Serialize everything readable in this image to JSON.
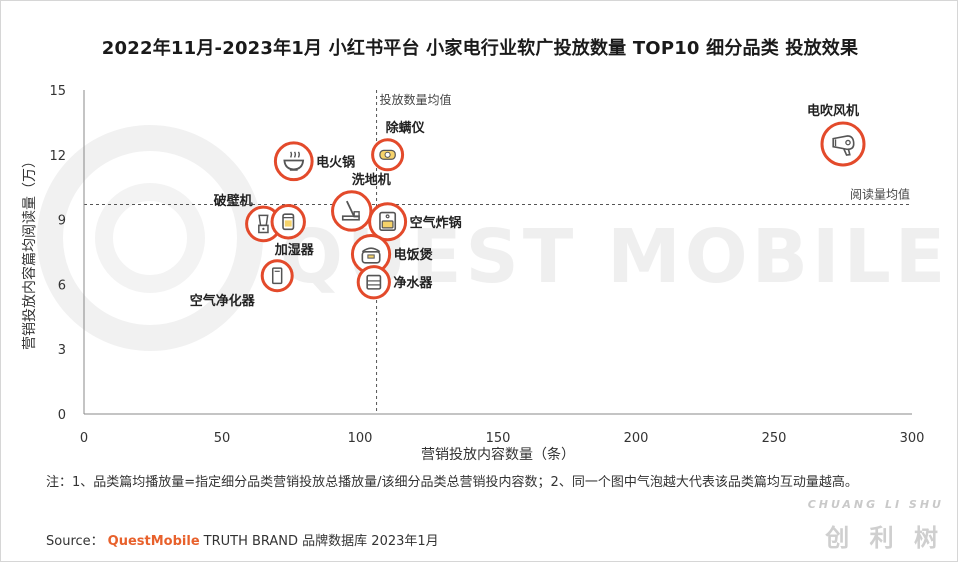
{
  "title": "2022年11月-2023年1月 小红书平台 小家电行业软广投放数量 TOP10 细分品类 投放效果",
  "note": "注：1、品类篇均播放量=指定细分品类营销投放总播放量/该细分品类总营销投内容数；2、同一个图中气泡越大代表该品类篇均互动量越高。",
  "source": {
    "label": "Source：",
    "brand": "QuestMobile",
    "rest": "TRUTH BRAND 品牌数据库 2023年1月"
  },
  "watermark": "QUEST MOBILE",
  "logo": {
    "en": "CHUANG LI SHU",
    "cn": "创 利 树"
  },
  "colors": {
    "bubble_ring": "#e34a2b",
    "icon": "#555555",
    "grid": "#555555"
  },
  "chart_data": {
    "type": "scatter",
    "xlabel": "营销投放内容数量（条）",
    "ylabel": "营销投放内容篇均阅读量（万）",
    "xlim": [
      0,
      300
    ],
    "ylim": [
      0,
      15
    ],
    "xticks": [
      "0",
      "50",
      "100",
      "150",
      "200",
      "250",
      "300"
    ],
    "yticks": [
      "0",
      "3",
      "6",
      "9",
      "12",
      "15"
    ],
    "grid": false,
    "reference_lines": [
      {
        "axis": "x",
        "value": 106,
        "label": "投放数量均值"
      },
      {
        "axis": "y",
        "value": 9.7,
        "label": "阅读量均值"
      }
    ],
    "points": [
      {
        "label": "电吹风机",
        "x": 275,
        "y": 12.5,
        "size": 1.0,
        "icon": "hair-dryer-icon"
      },
      {
        "label": "电火锅",
        "x": 76,
        "y": 11.7,
        "size": 0.78,
        "icon": "hot-pot-icon"
      },
      {
        "label": "除螨仪",
        "x": 110,
        "y": 12.0,
        "size": 0.5,
        "icon": "mite-remover-icon"
      },
      {
        "label": "洗地机",
        "x": 97,
        "y": 9.4,
        "size": 0.85,
        "icon": "floor-washer-icon"
      },
      {
        "label": "空气炸锅",
        "x": 110,
        "y": 8.9,
        "size": 0.75,
        "icon": "air-fryer-icon"
      },
      {
        "label": "破壁机",
        "x": 65,
        "y": 8.8,
        "size": 0.65,
        "icon": "blender-icon"
      },
      {
        "label": "加湿器",
        "x": 74,
        "y": 8.9,
        "size": 0.6,
        "icon": "humidifier-icon"
      },
      {
        "label": "电饭煲",
        "x": 104,
        "y": 7.4,
        "size": 0.8,
        "icon": "rice-cooker-icon"
      },
      {
        "label": "净水器",
        "x": 105,
        "y": 6.1,
        "size": 0.55,
        "icon": "water-purifier-icon"
      },
      {
        "label": "空气净化器",
        "x": 70,
        "y": 6.4,
        "size": 0.5,
        "icon": "air-purifier-icon"
      }
    ]
  }
}
